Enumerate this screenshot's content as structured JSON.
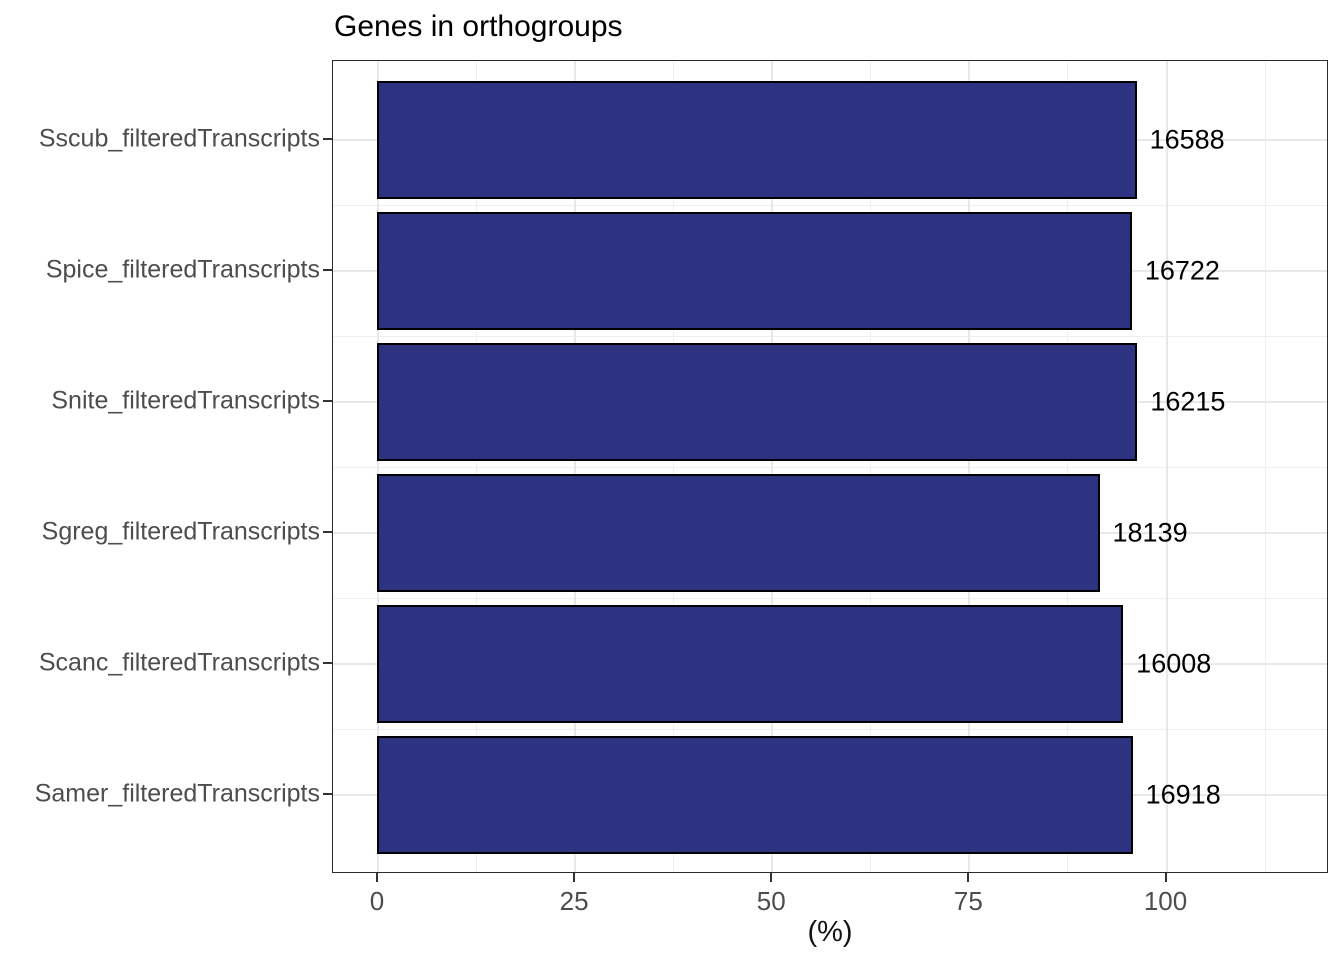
{
  "chart_data": {
    "type": "bar",
    "orientation": "horizontal",
    "title": "Genes in orthogroups",
    "xlabel": "(%)",
    "ylabel": "",
    "categories_top_to_bottom": [
      "Sscub_filteredTranscripts",
      "Spice_filteredTranscripts",
      "Snite_filteredTranscripts",
      "Sgreg_filteredTranscripts",
      "Scanc_filteredTranscripts",
      "Samer_filteredTranscripts"
    ],
    "values_percent": [
      96.2,
      95.6,
      96.3,
      91.5,
      94.5,
      95.7
    ],
    "bar_labels_gene_counts": [
      "16588",
      "16722",
      "16215",
      "18139",
      "16008",
      "16918"
    ],
    "xlim": [
      -5.7,
      120.6
    ],
    "x_major_ticks": [
      0,
      25,
      50,
      75,
      100
    ],
    "x_minor_ticks": [
      12.5,
      37.5,
      62.5,
      87.5,
      112.5
    ],
    "grid": true,
    "legend": "none",
    "colors": {
      "bar_fill": "#2d3380",
      "bar_stroke": "#000000",
      "grid_major": "#e8e8e8",
      "grid_minor": "#efefef",
      "panel_border": "#2b2b2b",
      "axis_text": "#4d4d4d",
      "title_text": "#000000",
      "background": "#ffffff"
    }
  }
}
